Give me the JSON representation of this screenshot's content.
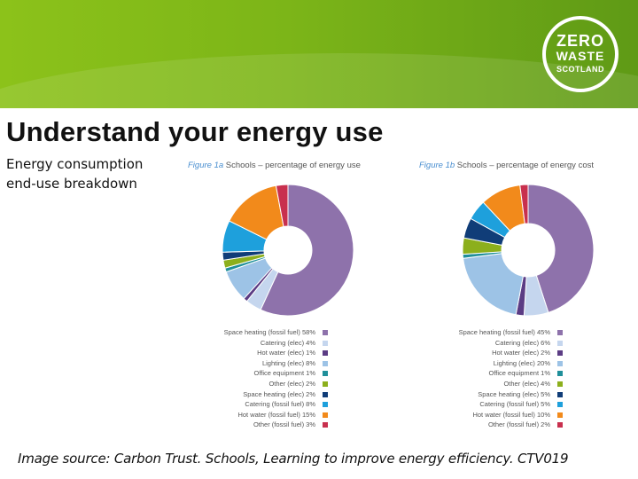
{
  "header": {
    "logo": {
      "line1": "ZERO",
      "line2": "WASTE",
      "line3": "SCOTLAND"
    }
  },
  "slide": {
    "title": "Understand your energy use",
    "subtitle": "Energy consumption end-use breakdown",
    "source": "Image source: Carbon Trust. Schools, Learning to improve energy efficiency. CTV019"
  },
  "colors": {
    "header_green": "#7cb518",
    "space_heating": "#8e72ab",
    "catering_elec": "#c5d6ee",
    "hot_water_elec": "#5b3c84",
    "lighting_elec": "#9dc3e6",
    "office_equipment": "#1f8f9a",
    "other_elec": "#8caf1c",
    "space_heating_elec": "#103d78",
    "catering_fossil": "#1ea0dc",
    "hot_water_fossil": "#f28a1b",
    "other_fossil": "#c8304e"
  },
  "chart_data": [
    {
      "type": "pie",
      "donut": true,
      "title_number": "Figure 1a",
      "title": "Schools – percentage of energy use",
      "labels": [
        "Space heating (fossil fuel)",
        "Catering (elec)",
        "Hot water (elec)",
        "Lighting (elec)",
        "Office equipment",
        "Other (elec)",
        "Space heating (elec)",
        "Catering (fossil fuel)",
        "Hot water (fossil fuel)",
        "Other (fossil fuel)"
      ],
      "legend_text": [
        "Space heating (fossil fuel) 58%",
        "Catering (elec) 4%",
        "Hot water (elec) 1%",
        "Lighting (elec) 8%",
        "Office equipment 1%",
        "Other (elec) 2%",
        "Space heating (elec) 2%",
        "Catering (fossil fuel) 8%",
        "Hot water (fossil fuel) 15%",
        "Other (fossil fuel) 3%"
      ],
      "values": [
        58,
        4,
        1,
        8,
        1,
        2,
        2,
        8,
        15,
        3
      ],
      "colors": [
        "#8e72ab",
        "#c5d6ee",
        "#5b3c84",
        "#9dc3e6",
        "#1f8f9a",
        "#8caf1c",
        "#103d78",
        "#1ea0dc",
        "#f28a1b",
        "#c8304e"
      ],
      "legend_position": "below"
    },
    {
      "type": "pie",
      "donut": true,
      "title_number": "Figure 1b",
      "title": "Schools – percentage of energy cost",
      "labels": [
        "Space heating (fossil fuel)",
        "Catering (elec)",
        "Hot water (elec)",
        "Lighting (elec)",
        "Office equipment",
        "Other (elec)",
        "Space heating (elec)",
        "Catering (fossil fuel)",
        "Hot water (fossil fuel)",
        "Other (fossil fuel)"
      ],
      "legend_text": [
        "Space heating (fossil fuel) 45%",
        "Catering (elec) 6%",
        "Hot water (elec) 2%",
        "Lighting (elec) 20%",
        "Office equipment 1%",
        "Other (elec) 4%",
        "Space heating (elec) 5%",
        "Catering (fossil fuel) 5%",
        "Hot water (fossil fuel) 10%",
        "Other (fossil fuel) 2%"
      ],
      "values": [
        45,
        6,
        2,
        20,
        1,
        4,
        5,
        5,
        10,
        2
      ],
      "colors": [
        "#8e72ab",
        "#c5d6ee",
        "#5b3c84",
        "#9dc3e6",
        "#1f8f9a",
        "#8caf1c",
        "#103d78",
        "#1ea0dc",
        "#f28a1b",
        "#c8304e"
      ],
      "legend_position": "below"
    }
  ]
}
